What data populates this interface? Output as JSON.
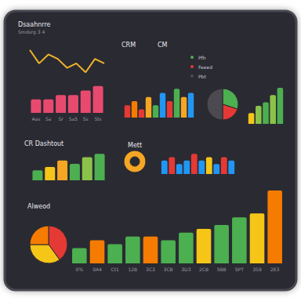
{
  "chart_data": [
    {
      "type": "line",
      "title": "Dsaahnrre",
      "subtitle": "Smdsrg 3 4",
      "values": [
        6,
        3,
        5,
        4,
        2,
        3,
        1,
        4,
        3
      ],
      "color": "#f0b429",
      "marker": "none",
      "line_style": "solid",
      "ylim": [
        0,
        7
      ],
      "tick_labels": false
    },
    {
      "type": "bar",
      "categories": [
        "Aas",
        "Sa",
        "Sr",
        "Sa5",
        "Ss",
        "Sts"
      ],
      "values": [
        3,
        3,
        4,
        4,
        5,
        6
      ],
      "color": "#e84a6f",
      "ylim": [
        0,
        7
      ],
      "tick_labels": "x"
    },
    {
      "type": "bar",
      "title": "CRM",
      "values": [
        3,
        4,
        2,
        5,
        3,
        6,
        4,
        7,
        5,
        6
      ],
      "colors": [
        "#e53935",
        "#f57c00",
        "#e53935",
        "#f5a623",
        "#4caf50",
        "#2196f3",
        "#e53935",
        "#4caf50",
        "#f5a623",
        "#2196f3"
      ],
      "ylim": [
        0,
        8
      ],
      "tick_labels": false
    },
    {
      "type": "pie",
      "title": "CM",
      "categories": [
        "Pfh",
        "Feeed",
        "Pbt"
      ],
      "values": [
        30,
        20,
        50
      ],
      "colors": [
        "#4caf50",
        "#e53935",
        "#4a4a50"
      ],
      "legend": "top-left"
    },
    {
      "type": "bar",
      "values": [
        3,
        5,
        6,
        8,
        10
      ],
      "colors": [
        "#f5c518",
        "#8bc34a",
        "#4caf50",
        "#8bc34a",
        "#4caf50"
      ],
      "ylim": [
        0,
        10
      ],
      "tick_labels": false
    },
    {
      "type": "bar",
      "title": "CR Dashtout",
      "values": [
        3,
        4,
        6,
        5,
        7,
        8
      ],
      "colors": [
        "#4caf50",
        "#f5c518",
        "#f5a623",
        "#4caf50",
        "#8bc34a",
        "#4caf50"
      ],
      "ylim": [
        0,
        9
      ],
      "tick_labels": false
    },
    {
      "type": "pie",
      "title": "Mett",
      "values": [
        100
      ],
      "colors": [
        "#f5a623"
      ]
    },
    {
      "type": "bar",
      "values": [
        4,
        5,
        3,
        4,
        6,
        4,
        5,
        3,
        5,
        4
      ],
      "colors": [
        "#2196f3",
        "#e53935",
        "#2196f3",
        "#2196f3",
        "#e53935",
        "#2196f3",
        "#f5c518",
        "#2196f3",
        "#e53935",
        "#2196f3"
      ],
      "ylim": [
        0,
        7
      ],
      "tick_labels": false
    },
    {
      "type": "pie",
      "title": "Alweod",
      "values": [
        40,
        35,
        25
      ],
      "colors": [
        "#e53935",
        "#f5c518",
        "#f57c00"
      ]
    },
    {
      "type": "bar",
      "categories": [
        "0%",
        "0A4",
        "Ct1",
        "12B",
        "3C3",
        "3CB",
        "3D3",
        "2CB",
        "5BB",
        "5PT",
        "3S9",
        "2E3"
      ],
      "values": [
        2,
        3,
        2.5,
        3.5,
        3.5,
        3,
        4,
        4.5,
        5,
        6,
        6.5,
        9.5
      ],
      "colors": [
        "#4caf50",
        "#f57c00",
        "#4caf50",
        "#4caf50",
        "#f57c00",
        "#4caf50",
        "#4caf50",
        "#f5c518",
        "#4caf50",
        "#4caf50",
        "#f5c518",
        "#f57c00"
      ],
      "ylim": [
        0,
        10
      ],
      "tick_labels": "x"
    }
  ]
}
